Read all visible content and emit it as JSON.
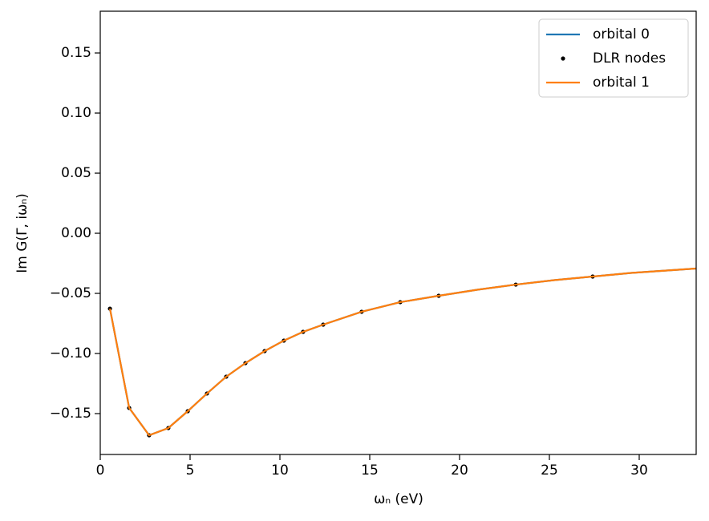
{
  "chart_data": {
    "type": "line",
    "xlabel": "ωₙ (eV)",
    "ylabel": "Im G(Γ, iωₙ)",
    "xlim": [
      0,
      33.17
    ],
    "ylim": [
      -0.184,
      0.1847
    ],
    "xticks": [
      0,
      5,
      10,
      15,
      20,
      25,
      30
    ],
    "yticks": [
      {
        "value": -0.15,
        "label": "−0.15"
      },
      {
        "value": -0.1,
        "label": "−0.10"
      },
      {
        "value": -0.05,
        "label": "−0.05"
      },
      {
        "value": 0,
        "label": "0.00"
      },
      0.05,
      {
        "value": 0.1,
        "label": "0.10"
      },
      0.15
    ],
    "legend": "upper right",
    "series": [
      {
        "name": "orbital 0",
        "color": "#1f77b4",
        "mode": "line",
        "x": [
          0.54,
          1.61,
          2.72,
          3.79,
          4.87,
          5.94,
          7.01,
          8.08,
          9.15,
          10.22,
          11.29,
          12.41,
          14.55,
          16.7,
          18.84,
          20.98,
          23.13,
          25.27,
          27.41,
          29.55,
          33.17
        ],
        "values": [
          -0.0627,
          -0.1453,
          -0.168,
          -0.162,
          -0.148,
          -0.1333,
          -0.1193,
          -0.108,
          -0.098,
          -0.0893,
          -0.082,
          -0.076,
          -0.0653,
          -0.0573,
          -0.052,
          -0.047,
          -0.0427,
          -0.039,
          -0.036,
          -0.033,
          -0.0293
        ]
      },
      {
        "name": "DLR nodes",
        "color": "#000000",
        "mode": "markers",
        "x": [
          0.54,
          1.61,
          2.72,
          3.79,
          4.87,
          5.94,
          7.01,
          8.08,
          9.15,
          10.22,
          11.29,
          12.41,
          14.55,
          16.7,
          18.84,
          23.13,
          27.41
        ],
        "values": [
          -0.0627,
          -0.1453,
          -0.168,
          -0.162,
          -0.148,
          -0.1333,
          -0.1193,
          -0.108,
          -0.098,
          -0.0893,
          -0.082,
          -0.076,
          -0.0653,
          -0.0573,
          -0.052,
          -0.0427,
          -0.036
        ]
      },
      {
        "name": "orbital 1",
        "color": "#ff7f0e",
        "mode": "line",
        "x": [
          0.54,
          1.61,
          2.72,
          3.79,
          4.87,
          5.94,
          7.01,
          8.08,
          9.15,
          10.22,
          11.29,
          12.41,
          14.55,
          16.7,
          18.84,
          20.98,
          23.13,
          25.27,
          27.41,
          29.55,
          33.17
        ],
        "values": [
          -0.0627,
          -0.1453,
          -0.168,
          -0.162,
          -0.148,
          -0.1333,
          -0.1193,
          -0.108,
          -0.098,
          -0.0893,
          -0.082,
          -0.076,
          -0.0653,
          -0.0573,
          -0.052,
          -0.047,
          -0.0427,
          -0.039,
          -0.036,
          -0.033,
          -0.0293
        ]
      }
    ]
  }
}
